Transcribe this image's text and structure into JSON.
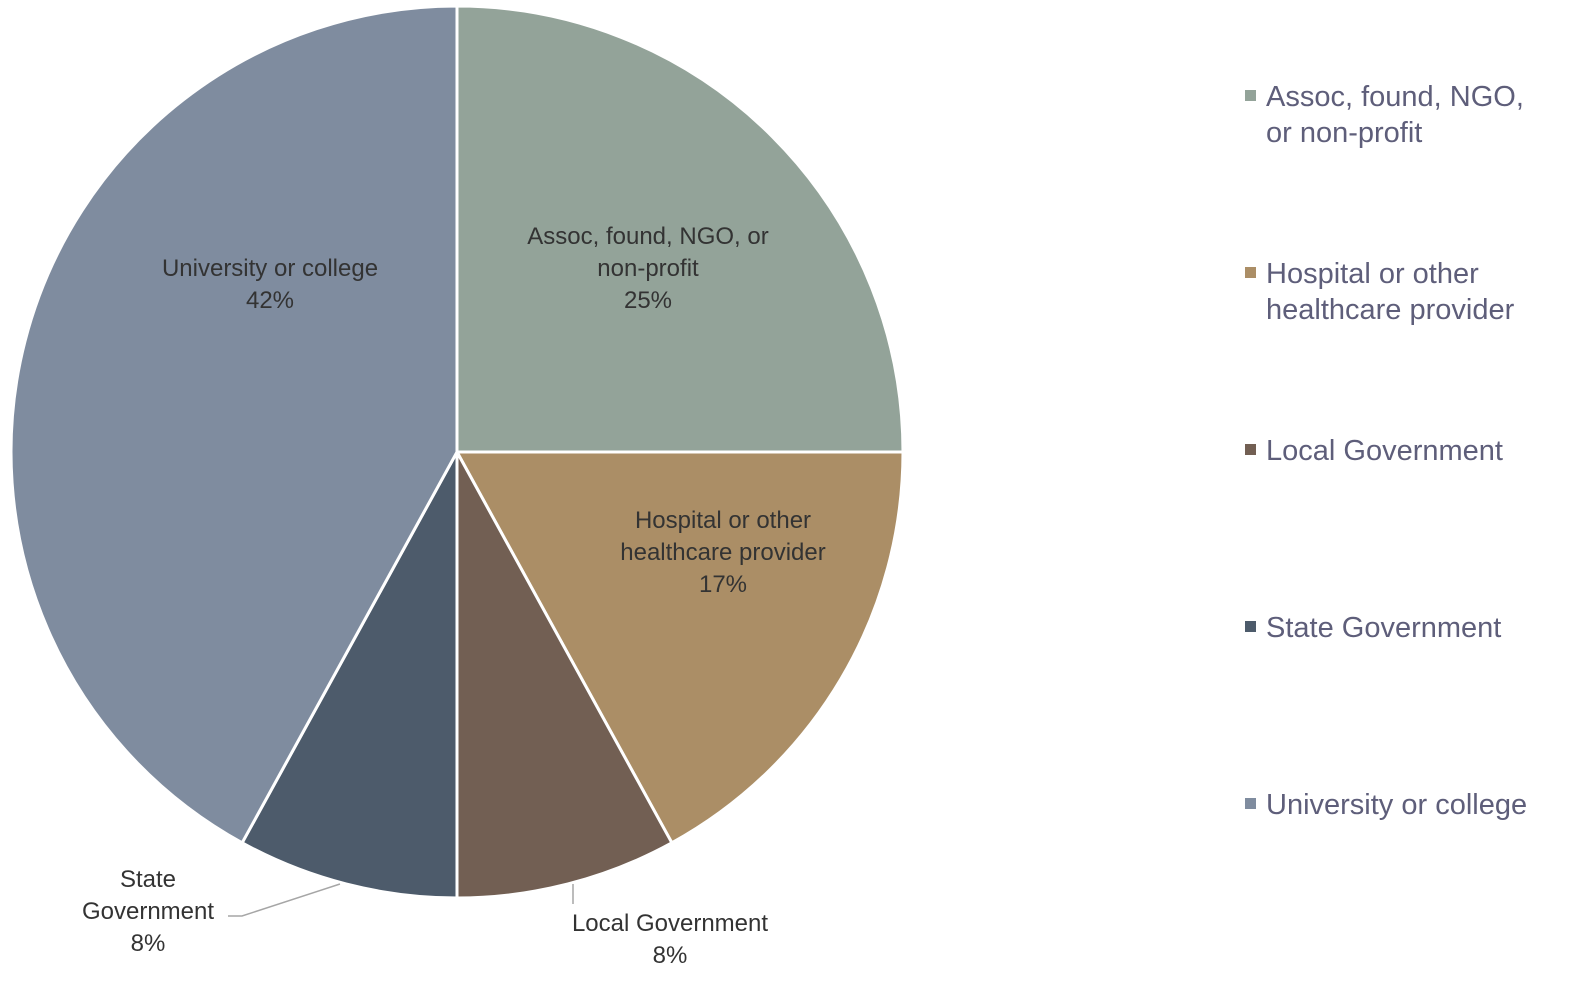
{
  "chart_data": {
    "type": "pie",
    "title": "",
    "start_angle_deg": 0,
    "direction": "clockwise",
    "legend_position": "right",
    "slices": [
      {
        "name": "Assoc, found, NGO, or non-profit",
        "value": 25,
        "value_label": "25%",
        "color": "#93a399",
        "label_lines": [
          "Assoc, found, NGO, or",
          "non-profit"
        ],
        "legend_lines": [
          "Assoc, found, NGO,",
          "or non-profit"
        ]
      },
      {
        "name": "Hospital or other healthcare provider",
        "value": 17,
        "value_label": "17%",
        "color": "#ab8e66",
        "label_lines": [
          "Hospital or other",
          "healthcare provider"
        ],
        "legend_lines": [
          "Hospital or other",
          "healthcare provider"
        ]
      },
      {
        "name": "Local Government",
        "value": 8,
        "value_label": "8%",
        "color": "#725f53",
        "label_lines": [
          "Local Government"
        ],
        "legend_lines": [
          "Local Government"
        ]
      },
      {
        "name": "State Government",
        "value": 8,
        "value_label": "8%",
        "color": "#4d5b6b",
        "label_lines": [
          "State",
          "Government"
        ],
        "legend_lines": [
          "State Government"
        ]
      },
      {
        "name": "University or college",
        "value": 42,
        "value_label": "42%",
        "color": "#7f8c9f",
        "label_lines": [
          "University or college"
        ],
        "legend_lines": [
          "University or college"
        ]
      }
    ]
  }
}
